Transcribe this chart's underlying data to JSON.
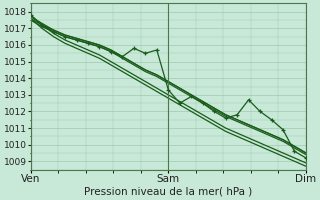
{
  "title": "Pression niveau de la mer( hPa )",
  "bg_color": "#c8e8d8",
  "grid_color": "#a0c8b0",
  "line_color": "#1a5c1a",
  "marker_color": "#1a5c1a",
  "ylim_min": 1008.5,
  "ylim_max": 1018.5,
  "yticks": [
    1009,
    1010,
    1011,
    1012,
    1013,
    1014,
    1015,
    1016,
    1017,
    1018
  ],
  "xtick_labels": [
    "Ven",
    "Sam",
    "Dim"
  ],
  "xtick_positions": [
    0.0,
    0.5,
    1.0
  ],
  "xlabel_fontsize": 7.5,
  "ylabel_fontsize": 6.5,
  "series": [
    [
      1017.5,
      1017.1,
      1016.8,
      1016.5,
      1016.3,
      1016.1,
      1015.9,
      1015.6,
      1015.2,
      1014.8,
      1014.4,
      1014.1,
      1013.7,
      1013.3,
      1012.9,
      1012.5,
      1012.1,
      1011.7,
      1011.4,
      1011.1,
      1010.8,
      1010.5,
      1010.2,
      1009.8,
      1009.4
    ],
    [
      1017.7,
      1017.3,
      1016.9,
      1016.6,
      1016.4,
      1016.2,
      1016.0,
      1015.7,
      1015.3,
      1014.9,
      1014.5,
      1014.2,
      1013.8,
      1013.4,
      1013.0,
      1012.6,
      1012.2,
      1011.8,
      1011.5,
      1011.2,
      1010.9,
      1010.6,
      1010.3,
      1009.9,
      1009.5
    ],
    [
      1017.6,
      1017.2,
      1016.9,
      1016.6,
      1016.4,
      1016.2,
      1016.0,
      1015.7,
      1015.3,
      1014.9,
      1014.5,
      1014.2,
      1013.8,
      1013.4,
      1013.0,
      1012.6,
      1012.2,
      1011.8,
      1011.5,
      1011.2,
      1010.9,
      1010.6,
      1010.3,
      1009.9,
      1009.5
    ],
    [
      1017.8,
      1017.2,
      1016.7,
      1016.3,
      1016.0,
      1015.7,
      1015.4,
      1015.0,
      1014.6,
      1014.2,
      1013.8,
      1013.4,
      1013.0,
      1012.6,
      1012.2,
      1011.8,
      1011.4,
      1011.0,
      1010.7,
      1010.4,
      1010.1,
      1009.8,
      1009.5,
      1009.2,
      1008.9
    ],
    [
      1017.6,
      1017.0,
      1016.5,
      1016.1,
      1015.8,
      1015.5,
      1015.2,
      1014.8,
      1014.4,
      1014.0,
      1013.6,
      1013.2,
      1012.8,
      1012.4,
      1012.0,
      1011.6,
      1011.2,
      1010.8,
      1010.5,
      1010.2,
      1009.9,
      1009.6,
      1009.3,
      1009.0,
      1008.7
    ]
  ],
  "noisy_y": [
    1017.8,
    1017.2,
    1016.8,
    1016.5,
    1016.3,
    1016.1,
    1015.9,
    1015.6,
    1015.3,
    1015.8,
    1015.5,
    1015.7,
    1013.3,
    1012.5,
    1012.9,
    1012.5,
    1012.0,
    1011.6,
    1011.8,
    1012.7,
    1012.0,
    1011.5,
    1010.9,
    1009.6,
    1009.2
  ],
  "spine_color": "#4a7a4a",
  "vline_color": "#4a7a4a"
}
